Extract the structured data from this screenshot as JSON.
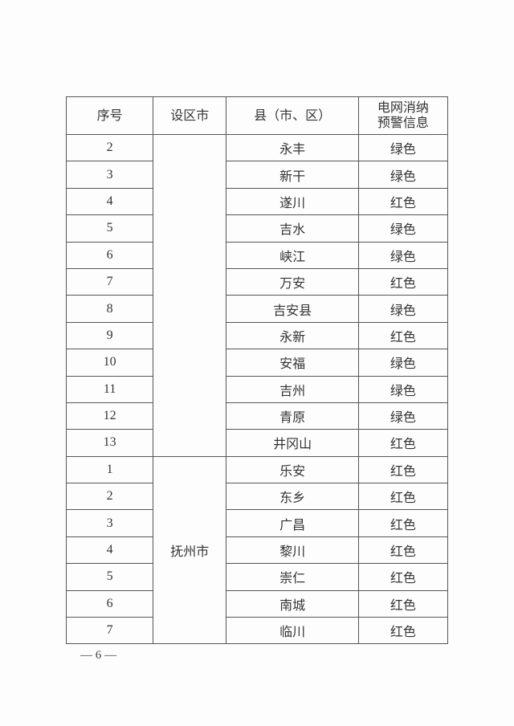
{
  "table": {
    "headers": [
      "序号",
      "设区市",
      "县（市、区）",
      "电网消纳预警信息"
    ],
    "header_lines": {
      "col4_line1": "电网消纳",
      "col4_line2": "预警信息"
    },
    "groups": [
      {
        "city": "",
        "rows": [
          {
            "no": "2",
            "county": "永丰",
            "warning": "绿色"
          },
          {
            "no": "3",
            "county": "新干",
            "warning": "绿色"
          },
          {
            "no": "4",
            "county": "遂川",
            "warning": "红色"
          },
          {
            "no": "5",
            "county": "吉水",
            "warning": "绿色"
          },
          {
            "no": "6",
            "county": "峡江",
            "warning": "绿色"
          },
          {
            "no": "7",
            "county": "万安",
            "warning": "红色"
          },
          {
            "no": "8",
            "county": "吉安县",
            "warning": "绿色"
          },
          {
            "no": "9",
            "county": "永新",
            "warning": "红色"
          },
          {
            "no": "10",
            "county": "安福",
            "warning": "绿色"
          },
          {
            "no": "11",
            "county": "吉州",
            "warning": "绿色"
          },
          {
            "no": "12",
            "county": "青原",
            "warning": "绿色"
          },
          {
            "no": "13",
            "county": "井冈山",
            "warning": "红色"
          }
        ]
      },
      {
        "city": "抚州市",
        "rows": [
          {
            "no": "1",
            "county": "乐安",
            "warning": "红色"
          },
          {
            "no": "2",
            "county": "东乡",
            "warning": "红色"
          },
          {
            "no": "3",
            "county": "广昌",
            "warning": "红色"
          },
          {
            "no": "4",
            "county": "黎川",
            "warning": "红色"
          },
          {
            "no": "5",
            "county": "崇仁",
            "warning": "红色"
          },
          {
            "no": "6",
            "county": "南城",
            "warning": "红色"
          },
          {
            "no": "7",
            "county": "临川",
            "warning": "红色"
          }
        ]
      }
    ]
  },
  "footer": {
    "page_number": "— 6 —"
  }
}
